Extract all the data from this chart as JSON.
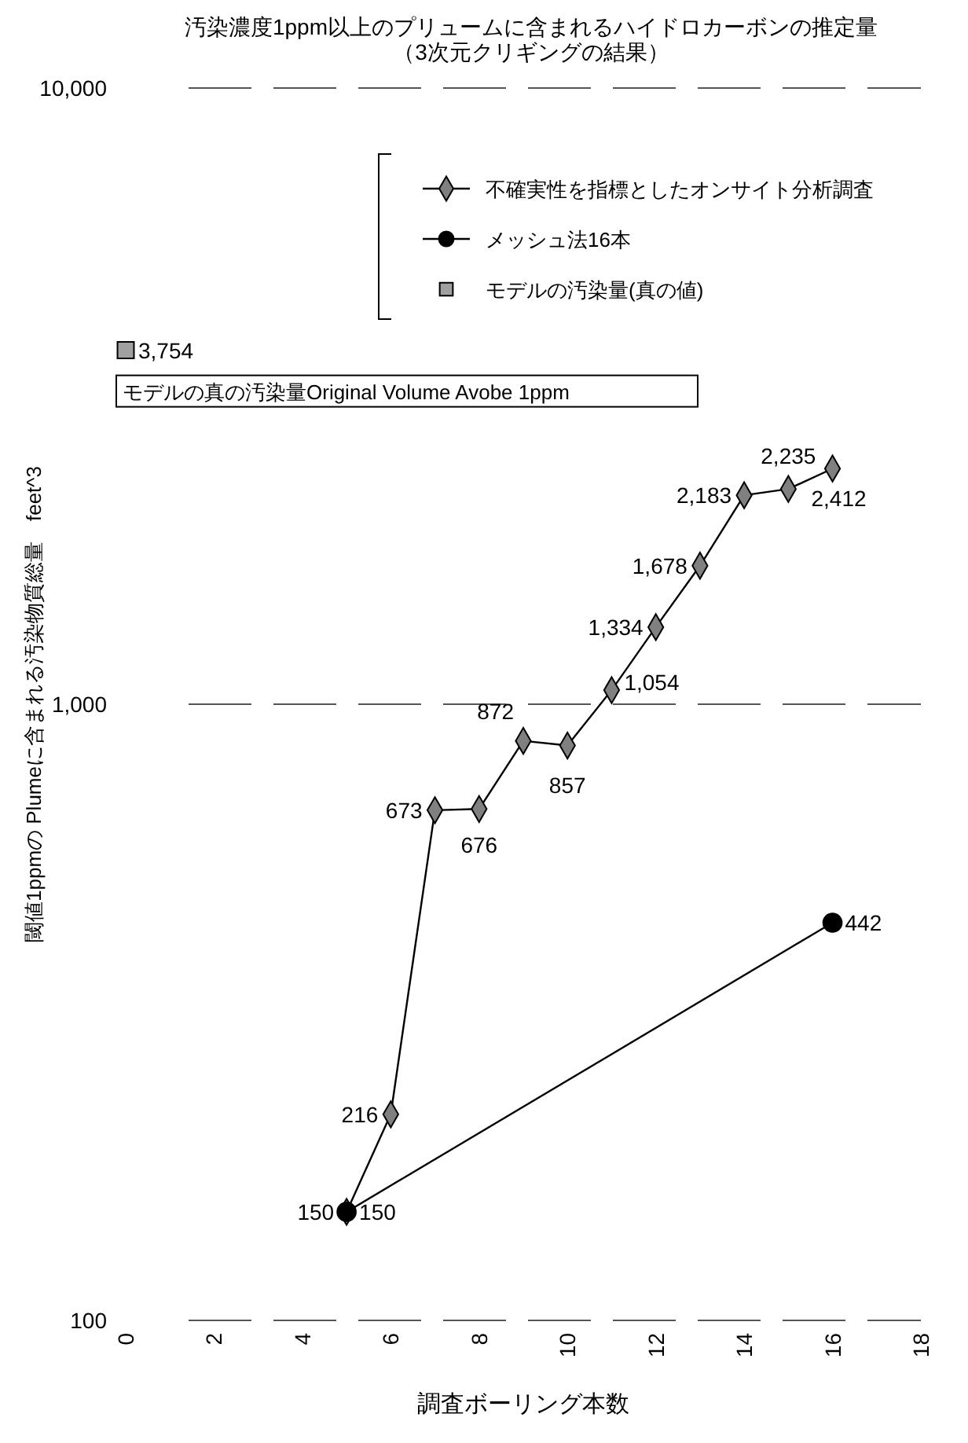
{
  "chart_data": {
    "type": "line",
    "title": "汚染濃度1ppm以上のプリュームに含まれるハイドロカーボンの推定量",
    "subtitle": "（3次元クリギングの結果）",
    "xlabel": "調査ボーリング本数",
    "ylabel": "閾値1ppmの Plumeに含まれる汚染物質総量　feet^3",
    "log": "y",
    "xlim": [
      0,
      18
    ],
    "xticks": [
      0,
      2,
      4,
      6,
      8,
      10,
      12,
      14,
      16,
      18
    ],
    "ylim": [
      100,
      10000
    ],
    "yticks": [
      {
        "value": 100,
        "label": "100"
      },
      {
        "value": 1000,
        "label": "1,000"
      },
      {
        "value": 10000,
        "label": "10,000"
      }
    ],
    "grid": "y",
    "line_style": "solid",
    "legend": "top right",
    "annotations": [
      {
        "text": "モデルの真の汚染量Original Volume Avobe 1ppm",
        "x": 0,
        "y": 3754
      }
    ],
    "series": [
      {
        "name": "不確実性を指標としたオンサイト分析調査",
        "color": "#808080",
        "marker": "diamond",
        "x": [
          5,
          6,
          7,
          8,
          9,
          10,
          11,
          12,
          13,
          14,
          15,
          16
        ],
        "values": [
          150,
          216,
          673,
          676,
          872,
          857,
          1054,
          1334,
          1678,
          2183,
          2235,
          2412
        ],
        "value_labels": [
          "150",
          "216",
          "673",
          "676",
          "872",
          "857",
          "1,054",
          "1,334",
          "1,678",
          "2,183",
          "2,235",
          "2,412"
        ]
      },
      {
        "name": "メッシュ法16本",
        "color": "#000000",
        "marker": "circle",
        "x": [
          5,
          16
        ],
        "values": [
          150,
          442
        ],
        "value_labels": [
          "150",
          "442"
        ]
      },
      {
        "name": "モデルの汚染量(真の値)",
        "type": "scatter",
        "color": "#a0a0a0",
        "marker": "square",
        "x": [
          0
        ],
        "values": [
          3754
        ],
        "value_labels": [
          "3,754"
        ]
      }
    ]
  }
}
